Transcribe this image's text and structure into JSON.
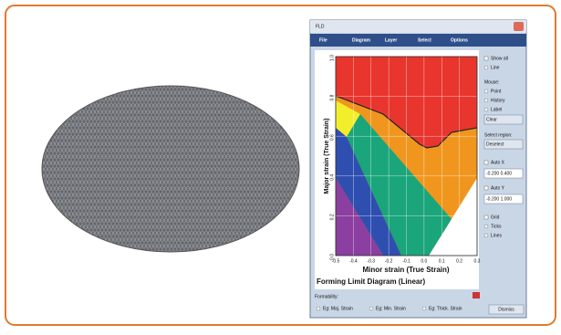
{
  "window": {
    "title": "FLD",
    "menu": [
      "File",
      "Diagram",
      "Layer",
      "Select",
      "Options"
    ]
  },
  "panel": {
    "show_all": "Show all",
    "line": "Line",
    "mouse": "Mouse:",
    "point": "Point",
    "history": "History",
    "label": "Label",
    "clear": "Clear",
    "select_region": "Select region:",
    "deselect": "Deselect",
    "auto_x": "Auto X",
    "x_range": "-0.200 0.400",
    "auto_y": "Auto Y",
    "y_range": "-0.200 1.000",
    "grid": "Grid",
    "ticks": "Ticks",
    "lines": "Lines"
  },
  "chart": {
    "title": "Forming Limit Diagram (Linear)",
    "xlabel": "Minor strain (True Strain)",
    "ylabel": "Major strain (True Strain)",
    "xlim": [
      -0.5,
      0.3
    ],
    "ylim": [
      0,
      1
    ],
    "xticks": [
      -0.5,
      -0.4,
      -0.3,
      -0.2,
      -0.1,
      {
        "value": 0,
        "label": "0.0"
      },
      0.1,
      0.2,
      0.3
    ],
    "yticks": [
      {
        "value": 0,
        "label": "0.0"
      },
      0.2,
      0.4,
      0.6,
      0.8,
      {
        "value": 1,
        "label": "1.0"
      }
    ]
  },
  "footer": {
    "formability": "Formability:",
    "items": [
      "Eg: Maj. Strain",
      "Eg: Min. Strain",
      "Eg: Thick. Strain"
    ],
    "dismiss": "Dismiss"
  }
}
